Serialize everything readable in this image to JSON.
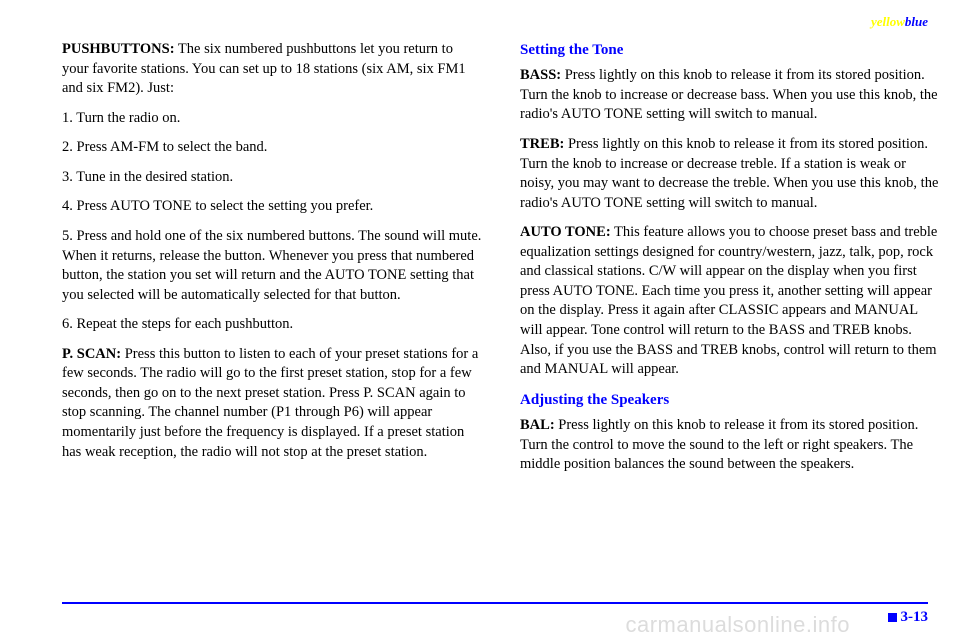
{
  "header": {
    "left": "yellow",
    "right": "blue"
  },
  "leftColumn": {
    "p1": {
      "label": "PUSHBUTTONS:",
      "text": " The six numbered pushbuttons let you return to your favorite stations. You can set up to 18 stations (six AM, six FM1 and six FM2). Just:"
    },
    "steps": {
      "s1": "1. Turn the radio on.",
      "s2": "2. Press AM-FM to select the band.",
      "s3a": "3. Tune in the desired station.",
      "s3b": "4. Press AUTO TONE to select the setting you prefer.",
      "s4a": "5. Press and hold one of the six numbered buttons. The sound will mute. When it returns, release the button. Whenever you press that numbered button, the station you set will return and the AUTO TONE setting that you selected will be automatically selected for that button.",
      "s5": "6. Repeat the steps for each pushbutton."
    },
    "pscan": {
      "label": "P. SCAN:",
      "text": " Press this button to listen to each of your preset stations for a few seconds. The radio will go to the first preset station, stop for a few seconds, then go on to the next preset station. Press P. SCAN again to stop scanning. The channel number (P1 through P6) will appear momentarily just before the frequency is displayed. If a preset station has weak reception, the radio will not stop at the preset station."
    }
  },
  "rightColumn": {
    "h1": "Setting the Tone",
    "bass": {
      "label": "BASS:",
      "text": " Press lightly on this knob to release it from its stored position. Turn the knob to increase or decrease bass. When you use this knob, the radio's AUTO TONE setting will switch to manual."
    },
    "treb": {
      "label": "TREB:",
      "text": " Press lightly on this knob to release it from its stored position. Turn the knob to increase or decrease treble. If a station is weak or noisy, you may want to decrease the treble. When you use this knob, the radio's AUTO TONE setting will switch to manual."
    },
    "autotone": {
      "label": "AUTO TONE:",
      "text": " This feature allows you to choose preset bass and treble equalization settings designed for country/western, jazz, talk, pop, rock and classical stations. C/W will appear on the display when you first press AUTO TONE. Each time you press it, another setting will appear on the display. Press it again after CLASSIC appears and MANUAL will appear. Tone control will return to the BASS and TREB knobs. Also, if you use the BASS and TREB knobs, control will return to them and MANUAL will appear."
    },
    "h2": "Adjusting the Speakers",
    "bal": {
      "label": "BAL:",
      "text": " Press lightly on this knob to release it from its stored position. Turn the control to move the sound to the left or right speakers. The middle position balances the sound between the speakers."
    }
  },
  "pageNumber": "3-13",
  "watermark": "carmanualsonline.info"
}
